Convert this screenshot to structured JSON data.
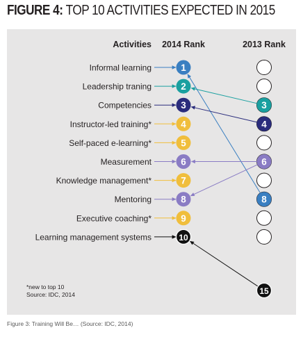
{
  "figure": {
    "title_lead": "FIGURE 4:",
    "title_rest": "TOP 10 ACTIVITIES EXPECTED IN 2015",
    "caption": "Figure 3: Training Will Be… (Source: IDC, 2014)"
  },
  "chart_data": {
    "type": "table",
    "headers": [
      "Activities",
      "2014 Rank",
      "2013 Rank"
    ],
    "rows": [
      {
        "activity": "Informal learning",
        "rank_2014": 1,
        "rank_2013": 8,
        "color": "#3a7fc1"
      },
      {
        "activity": "Leadership traning",
        "rank_2014": 2,
        "rank_2013": 3,
        "color": "#1aa0a0"
      },
      {
        "activity": "Competencies",
        "rank_2014": 3,
        "rank_2013": 4,
        "color": "#2a2c7c"
      },
      {
        "activity": "Instructor-led training*",
        "rank_2014": 4,
        "rank_2013": null,
        "color": "#f0be3c"
      },
      {
        "activity": "Self-paced e-learning*",
        "rank_2014": 5,
        "rank_2013": null,
        "color": "#f0be3c"
      },
      {
        "activity": "Measurement",
        "rank_2014": 6,
        "rank_2013": 6,
        "color": "#8a7cc4"
      },
      {
        "activity": "Knowledge management*",
        "rank_2014": 7,
        "rank_2013": null,
        "color": "#f0be3c"
      },
      {
        "activity": "Mentoring",
        "rank_2014": 8,
        "rank_2013": 6,
        "color": "#8a7cc4"
      },
      {
        "activity": "Executive coaching*",
        "rank_2014": 9,
        "rank_2013": null,
        "color": "#f0be3c"
      },
      {
        "activity": "Learning management systems",
        "rank_2014": 10,
        "rank_2013": 15,
        "color": "#111111"
      }
    ],
    "notes": [
      "*new to top 10",
      "Source: IDC, 2014"
    ]
  }
}
